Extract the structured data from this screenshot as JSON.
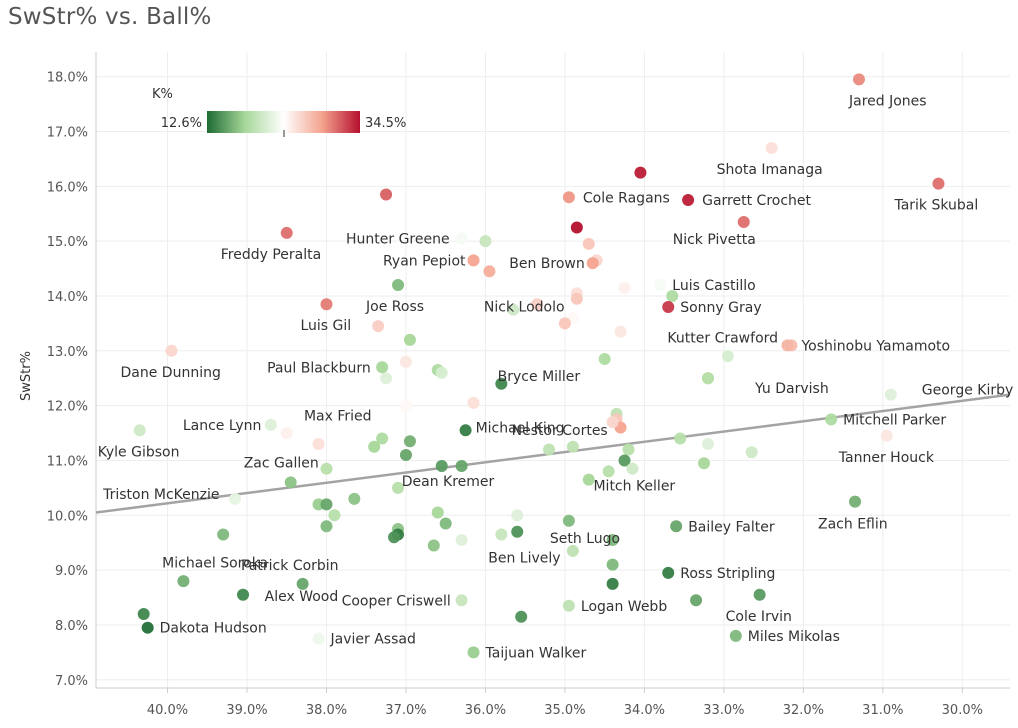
{
  "title": "SwStr% vs. Ball%",
  "chart_data": {
    "type": "scatter",
    "title": "SwStr% vs. Ball%",
    "xlabel": "",
    "ylabel": "SwStr%",
    "x_reversed": true,
    "xlim": [
      40.9,
      29.4
    ],
    "ylim": [
      6.85,
      18.45
    ],
    "x_ticks": [
      40,
      39,
      38,
      37,
      36,
      35,
      34,
      33,
      32,
      31,
      30
    ],
    "x_tick_labels": [
      "40.0%",
      "39.0%",
      "38.0%",
      "37.0%",
      "36.0%",
      "35.0%",
      "34.0%",
      "33.0%",
      "32.0%",
      "31.0%",
      "30.0%"
    ],
    "y_ticks": [
      7,
      8,
      9,
      10,
      11,
      12,
      13,
      14,
      15,
      16,
      17,
      18
    ],
    "y_tick_labels": [
      "7.0%",
      "8.0%",
      "9.0%",
      "10.0%",
      "11.0%",
      "12.0%",
      "13.0%",
      "14.0%",
      "15.0%",
      "16.0%",
      "17.0%",
      "18.0%"
    ],
    "grid": true,
    "trend_line": {
      "x": [
        40.9,
        29.4
      ],
      "y": [
        10.05,
        12.2
      ]
    },
    "color_legend": {
      "title": "K%",
      "min_label": "12.6%",
      "max_label": "34.5%",
      "min": 12.6,
      "max": 34.5,
      "colors": [
        "#1e6b34",
        "#a8d89a",
        "#ffffff",
        "#f4a48f",
        "#b5102e"
      ]
    },
    "labeled_points": [
      {
        "name": "Jared Jones",
        "x": 31.3,
        "y": 17.95,
        "k": 30.0
      },
      {
        "name": "Shota Imanaga",
        "x": 32.4,
        "y": 16.7,
        "k": 25.5
      },
      {
        "name": "Tarik Skubal",
        "x": 30.3,
        "y": 16.05,
        "k": 31.0
      },
      {
        "name": "Cole Ragans",
        "x": 34.95,
        "y": 15.8,
        "k": 29.5
      },
      {
        "name": "Garrett Crochet",
        "x": 33.45,
        "y": 15.75,
        "k": 34.0
      },
      {
        "name": "Nick Pivetta",
        "x": 32.75,
        "y": 15.35,
        "k": 31.0
      },
      {
        "name": "Hunter Greene",
        "x": 36.3,
        "y": 15.05,
        "k": 23.0
      },
      {
        "name": "Freddy Peralta",
        "x": 38.5,
        "y": 15.15,
        "k": 31.0
      },
      {
        "name": "Ryan Pepiot",
        "x": 36.15,
        "y": 14.65,
        "k": 29.0
      },
      {
        "name": "Ben Brown",
        "x": 34.65,
        "y": 14.6,
        "k": 29.0
      },
      {
        "name": "Luis Castillo",
        "x": 33.8,
        "y": 14.2,
        "k": 23.0
      },
      {
        "name": "Joe Ross",
        "x": 37.1,
        "y": 14.2,
        "k": 16.5
      },
      {
        "name": "Sonny Gray",
        "x": 33.7,
        "y": 13.8,
        "k": 33.0
      },
      {
        "name": "Luis Gil",
        "x": 38.0,
        "y": 13.85,
        "k": 30.5
      },
      {
        "name": "Kutter Crawford",
        "x": 32.15,
        "y": 13.1,
        "k": 27.5
      },
      {
        "name": "Yoshinobu Yamamoto",
        "x": 32.2,
        "y": 13.1,
        "k": 28.0
      },
      {
        "name": "Nick Lodolo",
        "x": 35.0,
        "y": 13.5,
        "k": 27.0
      },
      {
        "name": "Dane Dunning",
        "x": 39.95,
        "y": 13.0,
        "k": 26.0
      },
      {
        "name": "Bryce Miller",
        "x": 34.5,
        "y": 12.85,
        "k": 18.5
      },
      {
        "name": "Paul Blackburn",
        "x": 37.3,
        "y": 12.7,
        "k": 18.0
      },
      {
        "name": "Yu Darvish",
        "x": 33.2,
        "y": 12.5,
        "k": 19.0
      },
      {
        "name": "George Kirby",
        "x": 30.9,
        "y": 12.2,
        "k": 21.5
      },
      {
        "name": "Max Fried",
        "x": 37.0,
        "y": 12.0,
        "k": 24.0
      },
      {
        "name": "Nestor Cortes",
        "x": 34.4,
        "y": 11.7,
        "k": 26.0
      },
      {
        "name": "Lance Lynn",
        "x": 38.7,
        "y": 11.65,
        "k": 21.5
      },
      {
        "name": "Mitchell Parker",
        "x": 31.65,
        "y": 11.75,
        "k": 18.5
      },
      {
        "name": "Michael King",
        "x": 36.25,
        "y": 11.55,
        "k": 13.5
      },
      {
        "name": "Kyle Gibson",
        "x": 40.35,
        "y": 11.55,
        "k": 20.5
      },
      {
        "name": "Tanner Houck",
        "x": 30.95,
        "y": 11.45,
        "k": 25.0
      },
      {
        "name": "Zac Gallen",
        "x": 38.45,
        "y": 10.6,
        "k": 17.0
      },
      {
        "name": "Dean Kremer",
        "x": 36.55,
        "y": 10.9,
        "k": 15.0
      },
      {
        "name": "Mitch Keller",
        "x": 34.15,
        "y": 10.85,
        "k": 20.5
      },
      {
        "name": "Triston McKenzie",
        "x": 39.15,
        "y": 10.3,
        "k": 22.0
      },
      {
        "name": "Seth Lugo",
        "x": 34.95,
        "y": 9.9,
        "k": 16.5
      },
      {
        "name": "Zach Eflin",
        "x": 31.35,
        "y": 10.25,
        "k": 16.0
      },
      {
        "name": "Bailey Falter",
        "x": 33.6,
        "y": 9.8,
        "k": 15.5
      },
      {
        "name": "Patrick Corbin",
        "x": 37.15,
        "y": 9.6,
        "k": 14.5
      },
      {
        "name": "Ben Lively",
        "x": 35.6,
        "y": 9.7,
        "k": 14.5
      },
      {
        "name": "Michael Soroka",
        "x": 39.3,
        "y": 9.65,
        "k": 16.5
      },
      {
        "name": "Ross Stripling",
        "x": 33.7,
        "y": 8.95,
        "k": 13.5
      },
      {
        "name": "Alex Wood",
        "x": 38.3,
        "y": 8.75,
        "k": 15.5
      },
      {
        "name": "Cooper Criswell",
        "x": 36.3,
        "y": 8.45,
        "k": 20.0
      },
      {
        "name": "Logan Webb",
        "x": 34.95,
        "y": 8.35,
        "k": 19.5
      },
      {
        "name": "Cole Irvin",
        "x": 32.55,
        "y": 8.55,
        "k": 15.0
      },
      {
        "name": "Dakota Hudson",
        "x": 40.25,
        "y": 7.95,
        "k": 12.8
      },
      {
        "name": "Javier Assad",
        "x": 38.1,
        "y": 7.75,
        "k": 22.5
      },
      {
        "name": "Miles Mikolas",
        "x": 32.85,
        "y": 7.8,
        "k": 16.5
      },
      {
        "name": "Taijuan Walker",
        "x": 36.15,
        "y": 7.5,
        "k": 17.5
      }
    ],
    "unlabeled_points": [
      {
        "x": 34.05,
        "y": 16.25,
        "k": 34.0
      },
      {
        "x": 37.25,
        "y": 15.85,
        "k": 31.5
      },
      {
        "x": 34.85,
        "y": 15.25,
        "k": 34.5
      },
      {
        "x": 36.0,
        "y": 15.0,
        "k": 20.0
      },
      {
        "x": 34.7,
        "y": 14.95,
        "k": 27.0
      },
      {
        "x": 34.6,
        "y": 14.65,
        "k": 26.0
      },
      {
        "x": 35.95,
        "y": 14.45,
        "k": 28.5
      },
      {
        "x": 34.25,
        "y": 14.15,
        "k": 24.5
      },
      {
        "x": 34.85,
        "y": 14.05,
        "k": 25.5
      },
      {
        "x": 33.65,
        "y": 14.0,
        "k": 18.5
      },
      {
        "x": 34.85,
        "y": 13.95,
        "k": 27.0
      },
      {
        "x": 35.35,
        "y": 13.85,
        "k": 26.5
      },
      {
        "x": 35.65,
        "y": 13.75,
        "k": 20.5
      },
      {
        "x": 34.9,
        "y": 13.6,
        "k": 24.0
      },
      {
        "x": 37.35,
        "y": 13.45,
        "k": 26.5
      },
      {
        "x": 34.3,
        "y": 13.35,
        "k": 25.0
      },
      {
        "x": 36.95,
        "y": 13.2,
        "k": 18.0
      },
      {
        "x": 32.95,
        "y": 12.9,
        "k": 21.0
      },
      {
        "x": 37.0,
        "y": 12.8,
        "k": 25.0
      },
      {
        "x": 36.6,
        "y": 12.65,
        "k": 18.5
      },
      {
        "x": 36.55,
        "y": 12.6,
        "k": 21.0
      },
      {
        "x": 37.25,
        "y": 12.5,
        "k": 21.5
      },
      {
        "x": 35.8,
        "y": 12.4,
        "k": 14.0
      },
      {
        "x": 33.2,
        "y": 12.5,
        "k": 18.0
      },
      {
        "x": 34.85,
        "y": 12.4,
        "k": 23.5
      },
      {
        "x": 36.15,
        "y": 12.05,
        "k": 25.5
      },
      {
        "x": 34.35,
        "y": 11.85,
        "k": 19.5
      },
      {
        "x": 34.35,
        "y": 11.75,
        "k": 27.0
      },
      {
        "x": 34.3,
        "y": 11.6,
        "k": 29.0
      },
      {
        "x": 38.5,
        "y": 11.5,
        "k": 24.5
      },
      {
        "x": 37.3,
        "y": 11.4,
        "k": 18.5
      },
      {
        "x": 36.95,
        "y": 11.35,
        "k": 16.0
      },
      {
        "x": 33.55,
        "y": 11.4,
        "k": 19.0
      },
      {
        "x": 33.2,
        "y": 11.3,
        "k": 21.5
      },
      {
        "x": 38.1,
        "y": 11.3,
        "k": 25.5
      },
      {
        "x": 37.4,
        "y": 11.25,
        "k": 18.0
      },
      {
        "x": 34.9,
        "y": 11.25,
        "k": 19.5
      },
      {
        "x": 35.2,
        "y": 11.2,
        "k": 19.5
      },
      {
        "x": 34.2,
        "y": 11.2,
        "k": 19.0
      },
      {
        "x": 32.65,
        "y": 11.15,
        "k": 20.5
      },
      {
        "x": 37.0,
        "y": 11.1,
        "k": 15.5
      },
      {
        "x": 34.25,
        "y": 11.0,
        "k": 15.0
      },
      {
        "x": 33.25,
        "y": 10.95,
        "k": 18.0
      },
      {
        "x": 36.3,
        "y": 10.9,
        "k": 15.5
      },
      {
        "x": 34.45,
        "y": 10.8,
        "k": 19.0
      },
      {
        "x": 38.0,
        "y": 10.85,
        "k": 19.0
      },
      {
        "x": 34.7,
        "y": 10.65,
        "k": 18.0
      },
      {
        "x": 37.1,
        "y": 10.5,
        "k": 19.0
      },
      {
        "x": 37.65,
        "y": 10.3,
        "k": 17.0
      },
      {
        "x": 38.1,
        "y": 10.2,
        "k": 17.5
      },
      {
        "x": 38.0,
        "y": 10.2,
        "k": 15.5
      },
      {
        "x": 37.9,
        "y": 10.0,
        "k": 19.0
      },
      {
        "x": 36.6,
        "y": 10.05,
        "k": 18.0
      },
      {
        "x": 35.6,
        "y": 10.0,
        "k": 21.5
      },
      {
        "x": 36.5,
        "y": 9.85,
        "k": 16.5
      },
      {
        "x": 38.0,
        "y": 9.8,
        "k": 16.5
      },
      {
        "x": 37.1,
        "y": 9.75,
        "k": 17.0
      },
      {
        "x": 37.1,
        "y": 9.65,
        "k": 13.5
      },
      {
        "x": 35.8,
        "y": 9.65,
        "k": 20.0
      },
      {
        "x": 36.3,
        "y": 9.55,
        "k": 21.5
      },
      {
        "x": 36.65,
        "y": 9.45,
        "k": 17.0
      },
      {
        "x": 34.4,
        "y": 9.55,
        "k": 16.5
      },
      {
        "x": 34.9,
        "y": 9.35,
        "k": 19.5
      },
      {
        "x": 34.4,
        "y": 9.1,
        "k": 16.5
      },
      {
        "x": 34.4,
        "y": 8.75,
        "k": 13.5
      },
      {
        "x": 33.35,
        "y": 8.45,
        "k": 15.5
      },
      {
        "x": 35.55,
        "y": 8.15,
        "k": 14.5
      },
      {
        "x": 39.05,
        "y": 8.55,
        "k": 14.0
      },
      {
        "x": 39.8,
        "y": 8.8,
        "k": 16.0
      },
      {
        "x": 40.3,
        "y": 8.2,
        "k": 14.0
      }
    ]
  }
}
